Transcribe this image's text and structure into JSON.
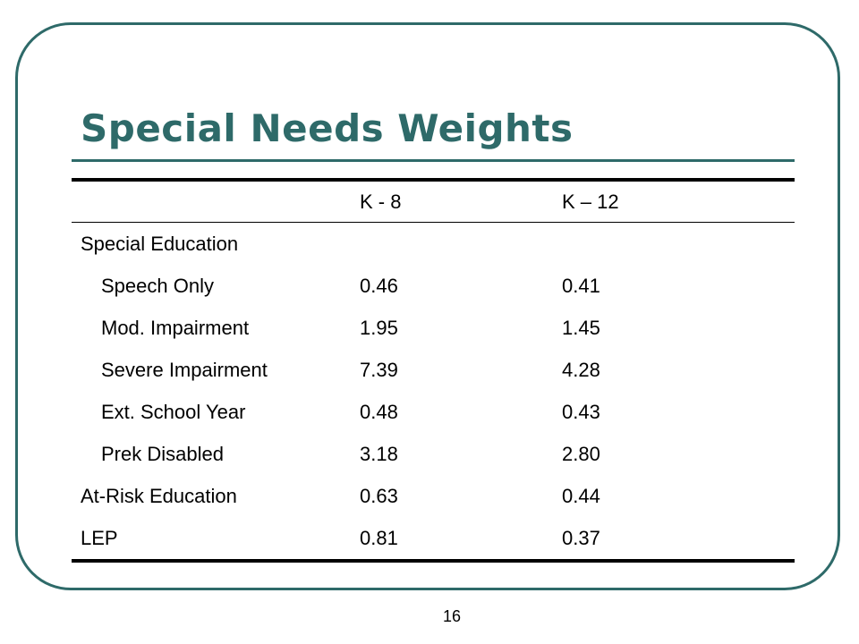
{
  "slide": {
    "title": "Special Needs Weights",
    "page_number": "16"
  },
  "table": {
    "columns": [
      "",
      "K - 8",
      "K – 12"
    ],
    "rows": [
      {
        "label": "Special Education",
        "k8": "",
        "k12": ""
      },
      {
        "label": "Speech Only",
        "k8": "0.46",
        "k12": "0.41"
      },
      {
        "label": "Mod. Impairment",
        "k8": "1.95",
        "k12": "1.45"
      },
      {
        "label": "Severe Impairment",
        "k8": "7.39",
        "k12": "4.28"
      },
      {
        "label": "Ext. School Year",
        "k8": "0.48",
        "k12": "0.43"
      },
      {
        "label": "Prek Disabled",
        "k8": "3.18",
        "k12": "2.80"
      },
      {
        "label": "At-Risk Education",
        "k8": "0.63",
        "k12": "0.44"
      },
      {
        "label": "LEP",
        "k8": "0.81",
        "k12": "0.37"
      }
    ]
  },
  "colors": {
    "accent": "#2e6a69",
    "text": "#000000",
    "background": "#ffffff"
  }
}
